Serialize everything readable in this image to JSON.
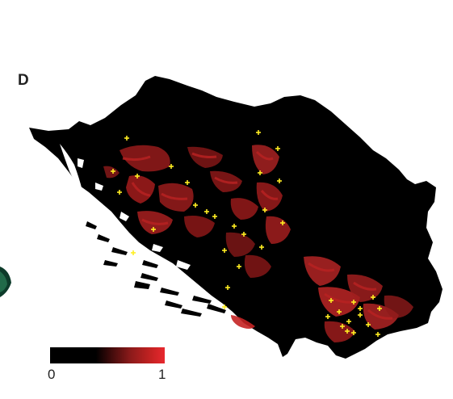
{
  "panel_label": "D",
  "legend": {
    "min_label": "0",
    "max_label": "1",
    "colors": [
      "#000000",
      "#000000",
      "#3a0a0a",
      "#8b1a1a",
      "#c42222",
      "#e8282e"
    ]
  },
  "colors": {
    "land": "#000000",
    "hotspot": "#a31c1c",
    "hotspot_bright": "#c42424",
    "site_marker": "#ffee22",
    "coast_islands": "#000000",
    "edge_feature": "#1f6b4a"
  },
  "site_marker_glyph": "+"
}
